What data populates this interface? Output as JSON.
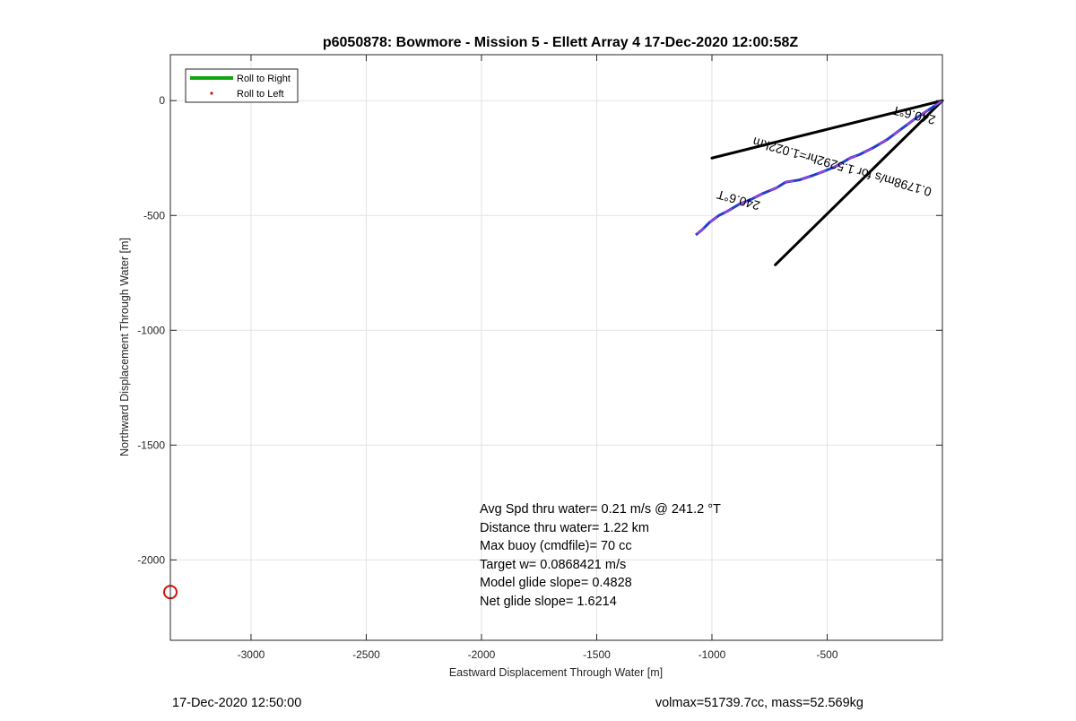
{
  "chart_data": {
    "type": "line",
    "title": "p6050878: Bowmore - Mission 5 - Ellett Array 4 17-Dec-2020 12:00:58Z",
    "xlabel": "Eastward Displacement Through Water [m]",
    "ylabel": "Northward Displacement Through Water [m]",
    "xlim": [
      -3350,
      0
    ],
    "ylim": [
      -2350,
      200
    ],
    "xticks": [
      -3000,
      -2500,
      -2000,
      -1500,
      -1000,
      -500
    ],
    "yticks": [
      0,
      -500,
      -1000,
      -1500,
      -2000
    ],
    "xtick_labels": [
      "-3000",
      "-2500",
      "-2000",
      "-1500",
      "-1000",
      "-500"
    ],
    "ytick_labels": [
      "0",
      "-500",
      "-1000",
      "-1500",
      "-2000"
    ],
    "grid": true,
    "legend_position": "top-left",
    "legend": [
      {
        "label": "Roll to Right",
        "color": "#11a611",
        "style": "line"
      },
      {
        "label": "Roll to Left",
        "color": "#e01010",
        "style": "dot"
      }
    ],
    "track": {
      "color": "#1f3fd0",
      "highlight_color": "#c63ad6",
      "x": [
        0,
        -60,
        -120,
        -180,
        -240,
        -300,
        -360,
        -400,
        -460,
        -520,
        -560,
        -620,
        -680,
        -720,
        -780,
        -830,
        -880,
        -930,
        -970,
        -1010,
        -1040,
        -1070
      ],
      "y": [
        0,
        -40,
        -80,
        -125,
        -170,
        -205,
        -235,
        -250,
        -285,
        -310,
        -325,
        -345,
        -355,
        -380,
        -405,
        -430,
        -450,
        -480,
        -500,
        -530,
        -560,
        -585
      ]
    },
    "heading_lines": {
      "color": "#000000",
      "lines": [
        {
          "x": [
            0,
            -1000
          ],
          "y": [
            0,
            -250
          ]
        },
        {
          "x": [
            0,
            -725
          ],
          "y": [
            0,
            -715
          ]
        }
      ]
    },
    "marker": {
      "x": -3350,
      "y": -2140,
      "color": "#d01010"
    },
    "track_labels": [
      {
        "text": "240.6°T",
        "x": -120,
        "y": -45,
        "rotation": 194
      },
      {
        "text": "0.1798m/s for 1.5292hr=1.022km",
        "x": -430,
        "y": -270,
        "rotation": 196
      },
      {
        "text": "240.6°T",
        "x": -880,
        "y": -415,
        "rotation": 196
      }
    ],
    "annotations": [
      "Avg Spd thru water=  0.21 m/s @ 241.2 °T",
      "Distance thru water=  1.22 km",
      "Max buoy (cmdfile)= 70 cc",
      "Target w= 0.0868421 m/s",
      "Model glide slope= 0.4828",
      "Net glide slope= 1.6214"
    ]
  },
  "footer": {
    "left": "17-Dec-2020 12:50:00",
    "right": "volmax=51739.7cc, mass=52.569kg"
  }
}
